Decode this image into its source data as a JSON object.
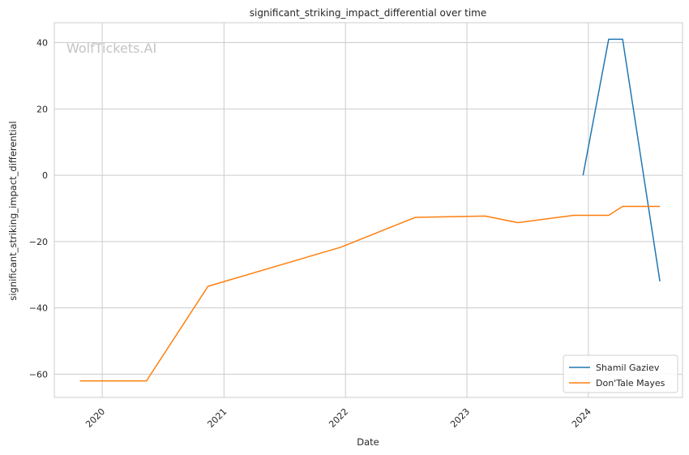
{
  "chart_data": {
    "type": "line",
    "title": "significant_striking_impact_differential over time",
    "xlabel": "Date",
    "ylabel": "significant_striking_impact_differential",
    "watermark": "WolfTickets.AI",
    "xlim": [
      "2019-08-10",
      "2024-10-10"
    ],
    "ylim": [
      -67,
      46
    ],
    "x_ticks": [
      "2020-01-01",
      "2021-01-01",
      "2022-01-01",
      "2023-01-01",
      "2024-01-01"
    ],
    "x_tick_labels": [
      "2020",
      "2021",
      "2022",
      "2023",
      "2024"
    ],
    "y_ticks": [
      -60,
      -40,
      -20,
      0,
      20,
      40
    ],
    "y_tick_labels": [
      "−60",
      "−40",
      "−20",
      "0",
      "20",
      "40"
    ],
    "grid": true,
    "legend_position": "bottom-right",
    "series": [
      {
        "name": "Shamil Gaziev",
        "color": "#1f77b4",
        "x": [
          "2023-12-16",
          "2024-03-02",
          "2024-04-13",
          "2024-08-03"
        ],
        "y": [
          0,
          41,
          41,
          -32
        ]
      },
      {
        "name": "Don'Tale Mayes",
        "color": "#ff7f0e",
        "x": [
          "2019-10-26",
          "2020-05-13",
          "2020-11-14",
          "2021-12-18",
          "2022-07-30",
          "2023-02-25",
          "2023-06-03",
          "2023-11-18",
          "2024-03-02",
          "2024-04-13",
          "2024-08-03"
        ],
        "y": [
          -62,
          -62,
          -33.5,
          -21.7,
          -12.7,
          -12.3,
          -14.3,
          -12.1,
          -12.1,
          -9.4,
          -9.4
        ]
      }
    ]
  }
}
